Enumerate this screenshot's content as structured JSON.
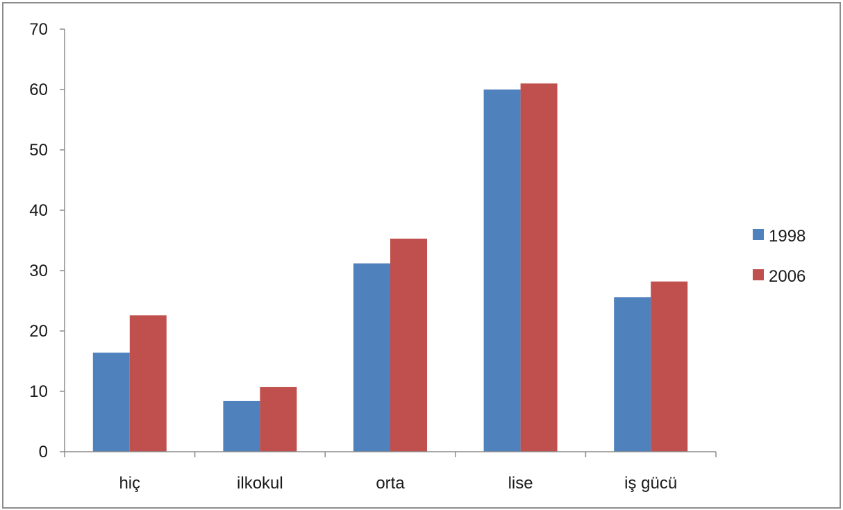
{
  "chart_data": {
    "type": "bar",
    "categories": [
      "hiç",
      "ilkokul",
      "orta",
      "lise",
      "iş gücü"
    ],
    "series": [
      {
        "name": "1998",
        "color": "#4f81bd",
        "values": [
          16.4,
          8.4,
          31.2,
          60.0,
          25.6
        ]
      },
      {
        "name": "2006",
        "color": "#c0504d",
        "values": [
          22.6,
          10.7,
          35.3,
          61.0,
          28.2
        ]
      }
    ],
    "title": "",
    "xlabel": "",
    "ylabel": "",
    "ylim": [
      0,
      70
    ],
    "yticks": [
      0,
      10,
      20,
      30,
      40,
      50,
      60,
      70
    ],
    "grid": false,
    "legend_position": "right"
  }
}
